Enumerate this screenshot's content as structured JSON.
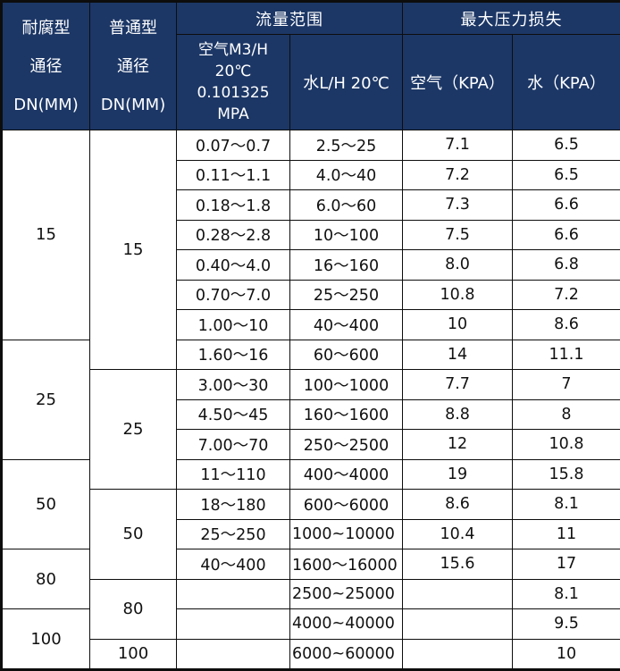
{
  "colors": {
    "header_bg": "#1c3766",
    "header_text": "#ffffff",
    "border": "#0d0d0d",
    "body_text": "#111111",
    "body_bg": "#ffffff"
  },
  "table": {
    "header": {
      "corrosion_dn": {
        "lines": [
          "耐腐型",
          "通径",
          "DN(MM)"
        ]
      },
      "normal_dn": {
        "lines": [
          "普通型",
          "通径",
          "DN(MM)"
        ]
      },
      "flow_range_group": "流量范围",
      "pressure_loss_group": "最大压力损失",
      "air_flow_col": {
        "lines": [
          "空气M3/H",
          "20℃",
          "0.101325",
          "MPA"
        ]
      },
      "water_flow_col": "水L/H 20℃",
      "air_kpa_col": "空气（KPA）",
      "water_kpa_col": "水（KPA）"
    },
    "dn_corrosion_spans": [
      {
        "label": "15",
        "rows": 7
      },
      {
        "label": "25",
        "rows": 4
      },
      {
        "label": "50",
        "rows": 3
      },
      {
        "label": "80",
        "rows": 2
      },
      {
        "label": "100",
        "rows": 2
      }
    ],
    "dn_normal_spans": [
      {
        "label": "15",
        "rows": 8
      },
      {
        "label": "25",
        "rows": 4
      },
      {
        "label": "50",
        "rows": 3
      },
      {
        "label": "80",
        "rows": 2
      },
      {
        "label": "100",
        "rows": 1
      }
    ],
    "rows": [
      {
        "air_flow": "0.07～0.7",
        "water_flow": "2.5～25",
        "air_kpa": "7.1",
        "water_kpa": "6.5"
      },
      {
        "air_flow": "0.11～1.1",
        "water_flow": "4.0～40",
        "air_kpa": "7.2",
        "water_kpa": "6.5"
      },
      {
        "air_flow": "0.18～1.8",
        "water_flow": "6.0～60",
        "air_kpa": "7.3",
        "water_kpa": "6.6"
      },
      {
        "air_flow": "0.28～2.8",
        "water_flow": "10～100",
        "air_kpa": "7.5",
        "water_kpa": "6.6"
      },
      {
        "air_flow": "0.40～4.0",
        "water_flow": "16～160",
        "air_kpa": "8.0",
        "water_kpa": "6.8"
      },
      {
        "air_flow": "0.70～7.0",
        "water_flow": "25～250",
        "air_kpa": "10.8",
        "water_kpa": "7.2"
      },
      {
        "air_flow": "1.00～10",
        "water_flow": "40～400",
        "air_kpa": "10",
        "water_kpa": "8.6"
      },
      {
        "air_flow": "1.60～16",
        "water_flow": "60～600",
        "air_kpa": "14",
        "water_kpa": "11.1"
      },
      {
        "air_flow": "3.00～30",
        "water_flow": "100～1000",
        "air_kpa": "7.7",
        "water_kpa": "7"
      },
      {
        "air_flow": "4.50～45",
        "water_flow": "160～1600",
        "air_kpa": "8.8",
        "water_kpa": "8"
      },
      {
        "air_flow": "7.00～70",
        "water_flow": "250～2500",
        "air_kpa": "12",
        "water_kpa": "10.8"
      },
      {
        "air_flow": "11～110",
        "water_flow": "400～4000",
        "air_kpa": "19",
        "water_kpa": "15.8"
      },
      {
        "air_flow": "18～180",
        "water_flow": "600～6000",
        "air_kpa": "8.6",
        "water_kpa": "8.1"
      },
      {
        "air_flow": "25～250",
        "water_flow": "1000~10000",
        "air_kpa": "10.4",
        "water_kpa": "11"
      },
      {
        "air_flow": "40～400",
        "water_flow": "1600～16000",
        "air_kpa": "15.6",
        "water_kpa": "17"
      },
      {
        "air_flow": "",
        "water_flow": "2500~25000",
        "air_kpa": "",
        "water_kpa": "8.1"
      },
      {
        "air_flow": "",
        "water_flow": "4000~40000",
        "air_kpa": "",
        "water_kpa": "9.5"
      },
      {
        "air_flow": "",
        "water_flow": "6000~60000",
        "air_kpa": "",
        "water_kpa": "10"
      }
    ]
  }
}
